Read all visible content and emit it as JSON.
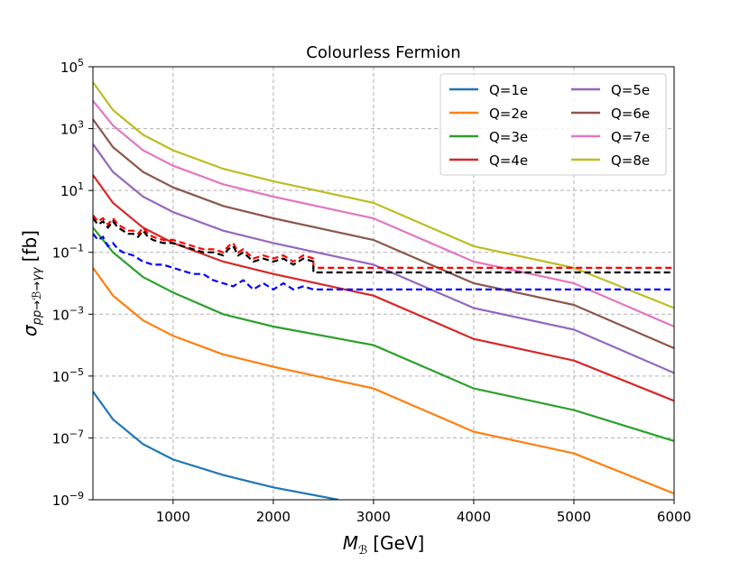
{
  "chart_data": {
    "type": "line",
    "title": "Colourless Fermion",
    "xlabel_symbol": "M",
    "xlabel_sub": "ℬ",
    "xlabel_unit": "[GeV]",
    "ylabel_symbol": "σ",
    "ylabel_sub": "pp→ℬ→γγ",
    "ylabel_unit": "[fb]",
    "xlim": [
      200,
      6000
    ],
    "ylim_log10": [
      -9,
      5
    ],
    "x_ticks": [
      {
        "value": 1000,
        "label": "1000"
      },
      {
        "value": 2000,
        "label": "2000"
      },
      {
        "value": 3000,
        "label": "3000"
      },
      {
        "value": 4000,
        "label": "4000"
      },
      {
        "value": 5000,
        "label": "5000"
      },
      {
        "value": 6000,
        "label": "6000"
      }
    ],
    "y_ticks": [
      {
        "exp": 5,
        "base": "10",
        "sup": "5"
      },
      {
        "exp": 3,
        "base": "10",
        "sup": "3"
      },
      {
        "exp": 1,
        "base": "10",
        "sup": "1"
      },
      {
        "exp": -1,
        "base": "10",
        "sup": "−1"
      },
      {
        "exp": -3,
        "base": "10",
        "sup": "−3"
      },
      {
        "exp": -5,
        "base": "10",
        "sup": "−5"
      },
      {
        "exp": -7,
        "base": "10",
        "sup": "−7"
      },
      {
        "exp": -9,
        "base": "10",
        "sup": "−9"
      }
    ],
    "grid": true,
    "legend_position": "top-right",
    "series": [
      {
        "name": "Q=1e",
        "color": "#1f77b4",
        "x": [
          200,
          400,
          700,
          1000,
          1500,
          2000,
          2650
        ],
        "log10_y": [
          -5.5,
          -6.4,
          -7.2,
          -7.7,
          -8.2,
          -8.6,
          -9.0
        ]
      },
      {
        "name": "Q=2e",
        "color": "#ff7f0e",
        "x": [
          200,
          400,
          700,
          1000,
          1500,
          2000,
          3000,
          4000,
          5000,
          6000
        ],
        "log10_y": [
          -1.5,
          -2.4,
          -3.2,
          -3.7,
          -4.3,
          -4.7,
          -5.4,
          -6.8,
          -7.5,
          -8.8
        ]
      },
      {
        "name": "Q=3e",
        "color": "#2ca02c",
        "x": [
          200,
          400,
          700,
          1000,
          1500,
          2000,
          3000,
          4000,
          5000,
          6000
        ],
        "log10_y": [
          -0.2,
          -1.0,
          -1.8,
          -2.3,
          -3.0,
          -3.4,
          -4.0,
          -5.4,
          -6.1,
          -7.1
        ]
      },
      {
        "name": "Q=4e",
        "color": "#d62728",
        "x": [
          200,
          400,
          700,
          1000,
          1500,
          2000,
          3000,
          4000,
          5000,
          6000
        ],
        "log10_y": [
          1.5,
          0.6,
          -0.2,
          -0.7,
          -1.3,
          -1.7,
          -2.4,
          -3.8,
          -4.5,
          -5.8
        ]
      },
      {
        "name": "Q=5e",
        "color": "#9467bd",
        "x": [
          200,
          400,
          700,
          1000,
          1500,
          2000,
          3000,
          4000,
          5000,
          6000
        ],
        "log10_y": [
          2.5,
          1.6,
          0.8,
          0.3,
          -0.3,
          -0.7,
          -1.4,
          -2.8,
          -3.5,
          -4.9
        ]
      },
      {
        "name": "Q=6e",
        "color": "#8c564b",
        "x": [
          200,
          400,
          700,
          1000,
          1500,
          2000,
          3000,
          4000,
          5000,
          6000
        ],
        "log10_y": [
          3.3,
          2.4,
          1.6,
          1.1,
          0.5,
          0.1,
          -0.6,
          -2.0,
          -2.7,
          -4.1
        ]
      },
      {
        "name": "Q=7e",
        "color": "#e377c2",
        "x": [
          200,
          400,
          700,
          1000,
          1500,
          2000,
          3000,
          4000,
          5000,
          6000
        ],
        "log10_y": [
          3.9,
          3.1,
          2.3,
          1.8,
          1.2,
          0.8,
          0.1,
          -1.3,
          -2.0,
          -3.4
        ]
      },
      {
        "name": "Q=8e",
        "color": "#bcbd22",
        "x": [
          200,
          400,
          700,
          1000,
          1500,
          2000,
          3000,
          4000,
          5000,
          6000
        ],
        "log10_y": [
          4.5,
          3.6,
          2.8,
          2.3,
          1.7,
          1.3,
          0.6,
          -0.8,
          -1.5,
          -2.8
        ]
      }
    ],
    "limit_curves": [
      {
        "name": "limit-red",
        "color": "#ff0000",
        "x": [
          200,
          250,
          300,
          350,
          400,
          450,
          500,
          550,
          600,
          650,
          700,
          750,
          800,
          900,
          1000,
          1100,
          1200,
          1300,
          1400,
          1500,
          1550,
          1600,
          1650,
          1700,
          1800,
          1900,
          2000,
          2100,
          2200,
          2300,
          2400,
          2400,
          6000
        ],
        "log10_y": [
          0.2,
          0.0,
          0.1,
          -0.1,
          0.1,
          -0.1,
          -0.2,
          -0.3,
          -0.3,
          -0.4,
          -0.2,
          -0.4,
          -0.5,
          -0.6,
          -0.6,
          -0.7,
          -0.8,
          -0.9,
          -0.9,
          -1.0,
          -0.8,
          -0.7,
          -1.0,
          -0.9,
          -1.2,
          -1.1,
          -1.2,
          -1.1,
          -1.3,
          -1.1,
          -1.2,
          -1.5,
          -1.5
        ]
      },
      {
        "name": "limit-black",
        "color": "#000000",
        "x": [
          200,
          250,
          300,
          350,
          400,
          450,
          500,
          550,
          600,
          650,
          700,
          750,
          800,
          900,
          1000,
          1100,
          1200,
          1300,
          1400,
          1500,
          1550,
          1600,
          1650,
          1700,
          1800,
          1900,
          2000,
          2100,
          2200,
          2300,
          2400,
          2400,
          6000
        ],
        "log10_y": [
          0.1,
          -0.1,
          0.0,
          -0.2,
          0.0,
          -0.2,
          -0.3,
          -0.4,
          -0.4,
          -0.5,
          -0.3,
          -0.5,
          -0.6,
          -0.7,
          -0.7,
          -0.8,
          -0.9,
          -1.0,
          -1.0,
          -1.1,
          -0.9,
          -0.8,
          -1.1,
          -1.0,
          -1.3,
          -1.2,
          -1.3,
          -1.2,
          -1.4,
          -1.2,
          -1.3,
          -1.65,
          -1.65
        ]
      },
      {
        "name": "limit-blue",
        "color": "#0000ff",
        "x": [
          200,
          250,
          300,
          350,
          400,
          450,
          500,
          600,
          700,
          800,
          900,
          1000,
          1100,
          1200,
          1300,
          1400,
          1500,
          1600,
          1700,
          1800,
          1900,
          2000,
          2100,
          2200,
          2300,
          2400,
          2400,
          6000
        ],
        "log10_y": [
          -0.4,
          -0.6,
          -0.5,
          -0.8,
          -0.7,
          -0.9,
          -1.0,
          -1.1,
          -1.3,
          -1.4,
          -1.4,
          -1.5,
          -1.6,
          -1.7,
          -1.7,
          -1.9,
          -2.0,
          -2.1,
          -1.9,
          -2.2,
          -2.0,
          -2.2,
          -2.0,
          -2.2,
          -2.1,
          -2.2,
          -2.2,
          -2.2
        ]
      }
    ]
  }
}
